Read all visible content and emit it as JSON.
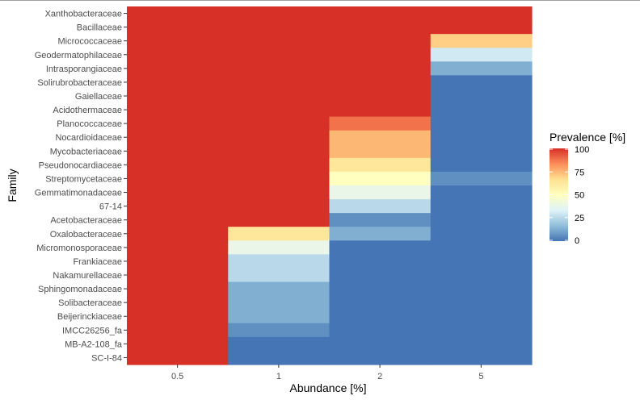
{
  "chart_data": {
    "type": "heatmap",
    "xlabel": "Abundance [%]",
    "ylabel": "Family",
    "x_categories": [
      "0.5",
      "1",
      "2",
      "5"
    ],
    "y_categories": [
      "Xanthobacteraceae",
      "Bacillaceae",
      "Micrococcaceae",
      "Geodermatophilaceae",
      "Intrasporangiaceae",
      "Solirubrobacteraceae",
      "Gaiellaceae",
      "Acidothermaceae",
      "Planococcaceae",
      "Nocardioidaceae",
      "Mycobacteriaceae",
      "Pseudonocardiaceae",
      "Streptomycetaceae",
      "Gemmatimonadaceae",
      "67-14",
      "Acetobacteraceae",
      "Oxalobacteraceae",
      "Micromonosporaceae",
      "Frankiaceae",
      "Nakamurellaceae",
      "Sphingomonadaceae",
      "Solibacteraceae",
      "Beijerinckiaceae",
      "IMCC26256_fa",
      "MB-A2-108_fa",
      "SC-I-84"
    ],
    "values": [
      [
        100,
        100,
        100,
        100
      ],
      [
        100,
        100,
        100,
        100
      ],
      [
        100,
        100,
        100,
        70
      ],
      [
        100,
        100,
        100,
        30
      ],
      [
        100,
        100,
        100,
        13
      ],
      [
        100,
        100,
        100,
        0
      ],
      [
        100,
        100,
        100,
        0
      ],
      [
        100,
        100,
        100,
        0
      ],
      [
        100,
        100,
        88,
        0
      ],
      [
        100,
        100,
        75,
        0
      ],
      [
        100,
        100,
        75,
        0
      ],
      [
        100,
        100,
        63,
        0
      ],
      [
        100,
        100,
        50,
        6
      ],
      [
        100,
        100,
        38,
        0
      ],
      [
        100,
        100,
        25,
        0
      ],
      [
        100,
        100,
        6,
        0
      ],
      [
        100,
        63,
        13,
        0
      ],
      [
        100,
        38,
        0,
        0
      ],
      [
        100,
        25,
        0,
        0
      ],
      [
        100,
        25,
        0,
        0
      ],
      [
        100,
        13,
        0,
        0
      ],
      [
        100,
        13,
        0,
        0
      ],
      [
        100,
        13,
        0,
        0
      ],
      [
        100,
        6,
        0,
        0
      ],
      [
        100,
        0,
        0,
        0
      ],
      [
        100,
        0,
        0,
        0
      ]
    ],
    "value_range": [
      0,
      100
    ],
    "legend": {
      "title": "Prevalence [%]",
      "ticks": [
        "100",
        "75",
        "50",
        "25",
        "0"
      ],
      "placement": "right"
    },
    "color_scale": [
      "#4575b4",
      "#91bfdb",
      "#e0f3f8",
      "#ffffbf",
      "#fee090",
      "#fc8d59",
      "#d73027"
    ],
    "grid": false
  }
}
